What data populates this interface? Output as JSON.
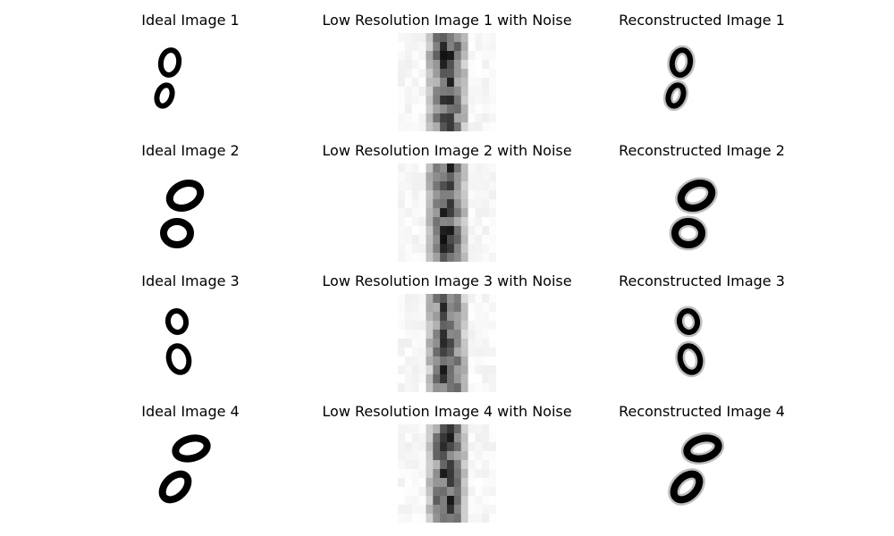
{
  "figure": {
    "columns": [
      {
        "key": "ideal",
        "rows": [
          {
            "title": "Ideal Image 1"
          },
          {
            "title": "Ideal Image 2"
          },
          {
            "title": "Ideal Image 3"
          },
          {
            "title": "Ideal Image 4"
          }
        ]
      },
      {
        "key": "lowres",
        "rows": [
          {
            "title": "Low Resolution Image 1 with Noise"
          },
          {
            "title": "Low Resolution Image 2 with Noise"
          },
          {
            "title": "Low Resolution Image 3 with Noise"
          },
          {
            "title": "Low Resolution Image 4 with Noise"
          }
        ]
      },
      {
        "key": "reconstructed",
        "rows": [
          {
            "title": "Reconstructed Image 1"
          },
          {
            "title": "Reconstructed Image 2"
          },
          {
            "title": "Reconstructed Image 3"
          },
          {
            "title": "Reconstructed Image 4"
          }
        ]
      }
    ],
    "colors": {
      "ink": "#000000",
      "background": "#ffffff"
    },
    "colormap": "grayscale-inverted"
  }
}
